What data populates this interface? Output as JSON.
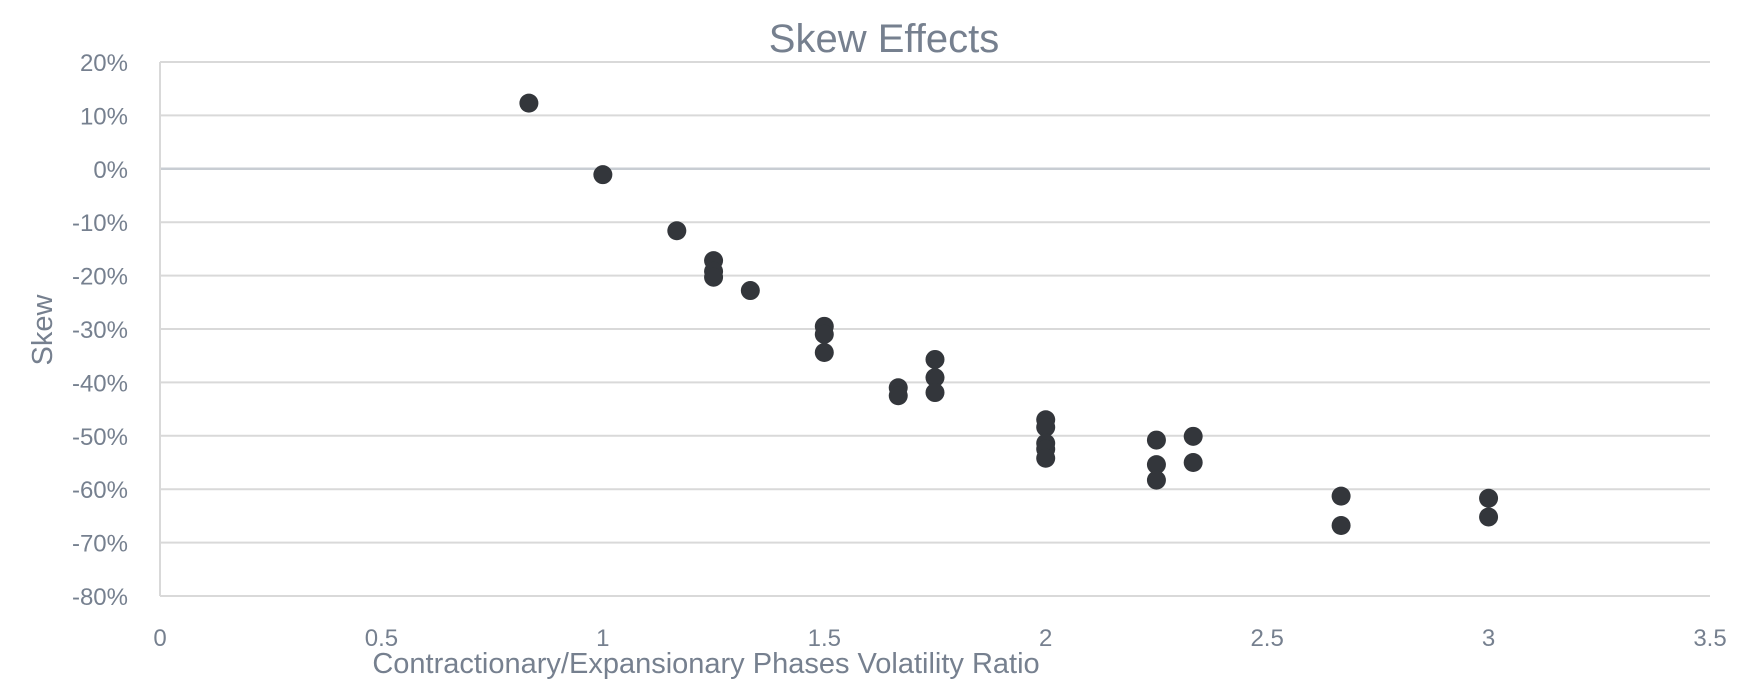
{
  "chart_data": {
    "type": "scatter",
    "title": "Skew Effects",
    "xlabel": "Contractionary/Expansionary Phases Volatility Ratio",
    "ylabel": "Skew",
    "xlim": [
      0,
      3.5
    ],
    "ylim": [
      -80,
      20
    ],
    "x_ticks": [
      "0",
      "0.5",
      "1",
      "1.5",
      "2",
      "2.5",
      "3",
      "3.5"
    ],
    "y_ticks": [
      "20%",
      "10%",
      "0%",
      "-10%",
      "-20%",
      "-30%",
      "-40%",
      "-50%",
      "-60%",
      "-70%",
      "-80%"
    ],
    "y_unit": "percent",
    "grid": "horizontal",
    "marker_color": "#33363b",
    "grid_color": "#d9d9d9",
    "text_color": "#76808f",
    "points": [
      {
        "x": 0.833,
        "y": 12.3
      },
      {
        "x": 1.0,
        "y": -1.1
      },
      {
        "x": 1.167,
        "y": -11.6
      },
      {
        "x": 1.25,
        "y": -17.2
      },
      {
        "x": 1.25,
        "y": -19.2
      },
      {
        "x": 1.25,
        "y": -20.3
      },
      {
        "x": 1.333,
        "y": -22.8
      },
      {
        "x": 1.5,
        "y": -29.5
      },
      {
        "x": 1.5,
        "y": -31.0
      },
      {
        "x": 1.5,
        "y": -34.4
      },
      {
        "x": 1.667,
        "y": -41.0
      },
      {
        "x": 1.667,
        "y": -42.5
      },
      {
        "x": 1.75,
        "y": -35.7
      },
      {
        "x": 1.75,
        "y": -39.1
      },
      {
        "x": 1.75,
        "y": -41.9
      },
      {
        "x": 2.0,
        "y": -47.0
      },
      {
        "x": 2.0,
        "y": -48.4
      },
      {
        "x": 2.0,
        "y": -51.4
      },
      {
        "x": 2.0,
        "y": -52.5
      },
      {
        "x": 2.0,
        "y": -54.2
      },
      {
        "x": 2.25,
        "y": -50.8
      },
      {
        "x": 2.25,
        "y": -55.4
      },
      {
        "x": 2.25,
        "y": -58.3
      },
      {
        "x": 2.333,
        "y": -50.1
      },
      {
        "x": 2.333,
        "y": -55.0
      },
      {
        "x": 2.667,
        "y": -61.3
      },
      {
        "x": 2.667,
        "y": -66.8
      },
      {
        "x": 3.0,
        "y": -61.7
      },
      {
        "x": 3.0,
        "y": -65.2
      }
    ]
  }
}
